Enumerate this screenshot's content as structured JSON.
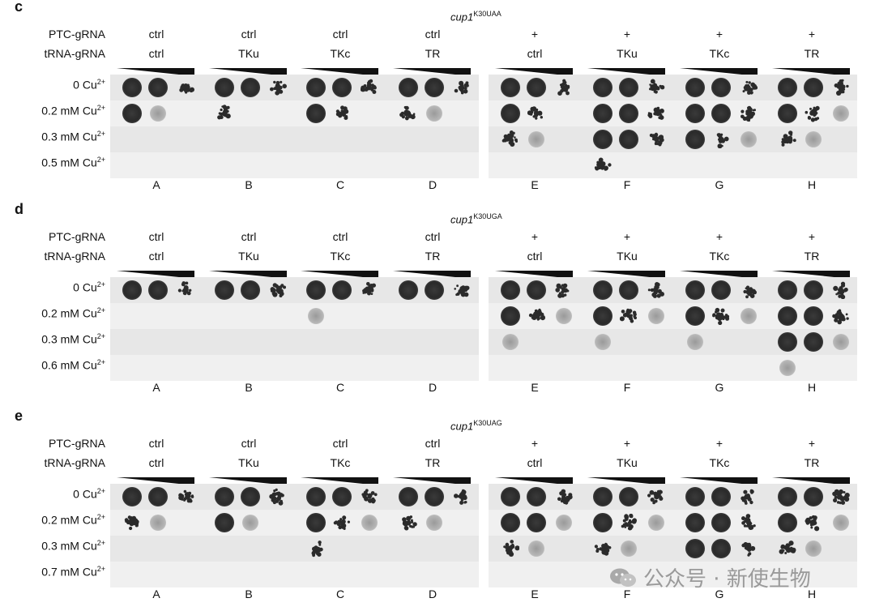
{
  "panels": [
    {
      "letter": "c",
      "strain": "cup1",
      "strain_sup": "K30UAA",
      "row1_label": "PTC-gRNA",
      "row2_label": "tRNA-gRNA",
      "columns": [
        {
          "ptc": "ctrl",
          "trna": "ctrl",
          "letter": "A"
        },
        {
          "ptc": "ctrl",
          "trna": "TKu",
          "letter": "B"
        },
        {
          "ptc": "ctrl",
          "trna": "TKc",
          "letter": "C"
        },
        {
          "ptc": "ctrl",
          "trna": "TR",
          "letter": "D"
        },
        {
          "ptc": "+",
          "trna": "ctrl",
          "letter": "E"
        },
        {
          "ptc": "+",
          "trna": "TKu",
          "letter": "F"
        },
        {
          "ptc": "+",
          "trna": "TKc",
          "letter": "G"
        },
        {
          "ptc": "+",
          "trna": "TR",
          "letter": "H"
        }
      ],
      "conditions": [
        {
          "value": "0 Cu",
          "sup": "2+"
        },
        {
          "value": "0.2 mM Cu",
          "sup": "2+"
        },
        {
          "value": "0.3 mM Cu",
          "sup": "2+"
        },
        {
          "value": "0.5 mM Cu",
          "sup": "2+"
        }
      ],
      "growth": [
        [
          [
            3,
            3,
            2
          ],
          [
            3,
            3,
            2
          ],
          [
            3,
            3,
            2
          ],
          [
            3,
            3,
            2
          ],
          [
            3,
            3,
            2
          ],
          [
            3,
            3,
            2
          ],
          [
            3,
            3,
            2
          ],
          [
            3,
            3,
            2
          ]
        ],
        [
          [
            3,
            1,
            0
          ],
          [
            2,
            0,
            0
          ],
          [
            3,
            2,
            0
          ],
          [
            2,
            1,
            0
          ],
          [
            3,
            2,
            0
          ],
          [
            3,
            3,
            2
          ],
          [
            3,
            3,
            2
          ],
          [
            3,
            2,
            1
          ]
        ],
        [
          [
            0,
            0,
            0
          ],
          [
            0,
            0,
            0
          ],
          [
            0,
            0,
            0
          ],
          [
            0,
            0,
            0
          ],
          [
            2,
            1,
            0
          ],
          [
            3,
            3,
            2
          ],
          [
            3,
            2,
            1
          ],
          [
            2,
            1,
            0
          ]
        ],
        [
          [
            0,
            0,
            0
          ],
          [
            0,
            0,
            0
          ],
          [
            0,
            0,
            0
          ],
          [
            0,
            0,
            0
          ],
          [
            0,
            0,
            0
          ],
          [
            2,
            0,
            0
          ],
          [
            0,
            0,
            0
          ],
          [
            0,
            0,
            0
          ]
        ]
      ]
    },
    {
      "letter": "d",
      "strain": "cup1",
      "strain_sup": "K30UGA",
      "row1_label": "PTC-gRNA",
      "row2_label": "tRNA-gRNA",
      "columns": [
        {
          "ptc": "ctrl",
          "trna": "ctrl",
          "letter": "A"
        },
        {
          "ptc": "ctrl",
          "trna": "TKu",
          "letter": "B"
        },
        {
          "ptc": "ctrl",
          "trna": "TKc",
          "letter": "C"
        },
        {
          "ptc": "ctrl",
          "trna": "TR",
          "letter": "D"
        },
        {
          "ptc": "+",
          "trna": "ctrl",
          "letter": "E"
        },
        {
          "ptc": "+",
          "trna": "TKu",
          "letter": "F"
        },
        {
          "ptc": "+",
          "trna": "TKc",
          "letter": "G"
        },
        {
          "ptc": "+",
          "trna": "TR",
          "letter": "H"
        }
      ],
      "conditions": [
        {
          "value": "0 Cu",
          "sup": "2+"
        },
        {
          "value": "0.2 mM Cu",
          "sup": "2+"
        },
        {
          "value": "0.3 mM Cu",
          "sup": "2+"
        },
        {
          "value": "0.6 mM Cu",
          "sup": "2+"
        }
      ],
      "growth": [
        [
          [
            3,
            3,
            2
          ],
          [
            3,
            3,
            2
          ],
          [
            3,
            3,
            2
          ],
          [
            3,
            3,
            2
          ],
          [
            3,
            3,
            2
          ],
          [
            3,
            3,
            2
          ],
          [
            3,
            3,
            2
          ],
          [
            3,
            3,
            2
          ]
        ],
        [
          [
            0,
            0,
            0
          ],
          [
            0,
            0,
            0
          ],
          [
            1,
            0,
            0
          ],
          [
            0,
            0,
            0
          ],
          [
            3,
            2,
            1
          ],
          [
            3,
            2,
            1
          ],
          [
            3,
            2,
            1
          ],
          [
            3,
            3,
            2
          ]
        ],
        [
          [
            0,
            0,
            0
          ],
          [
            0,
            0,
            0
          ],
          [
            0,
            0,
            0
          ],
          [
            0,
            0,
            0
          ],
          [
            1,
            0,
            0
          ],
          [
            1,
            0,
            0
          ],
          [
            1,
            0,
            0
          ],
          [
            3,
            3,
            1
          ]
        ],
        [
          [
            0,
            0,
            0
          ],
          [
            0,
            0,
            0
          ],
          [
            0,
            0,
            0
          ],
          [
            0,
            0,
            0
          ],
          [
            0,
            0,
            0
          ],
          [
            0,
            0,
            0
          ],
          [
            0,
            0,
            0
          ],
          [
            1,
            0,
            0
          ]
        ]
      ]
    },
    {
      "letter": "e",
      "strain": "cup1",
      "strain_sup": "K30UAG",
      "row1_label": "PTC-gRNA",
      "row2_label": "tRNA-gRNA",
      "columns": [
        {
          "ptc": "ctrl",
          "trna": "ctrl",
          "letter": "A"
        },
        {
          "ptc": "ctrl",
          "trna": "TKu",
          "letter": "B"
        },
        {
          "ptc": "ctrl",
          "trna": "TKc",
          "letter": "C"
        },
        {
          "ptc": "ctrl",
          "trna": "TR",
          "letter": "D"
        },
        {
          "ptc": "+",
          "trna": "ctrl",
          "letter": "E"
        },
        {
          "ptc": "+",
          "trna": "TKu",
          "letter": "F"
        },
        {
          "ptc": "+",
          "trna": "TKc",
          "letter": "G"
        },
        {
          "ptc": "+",
          "trna": "TR",
          "letter": "H"
        }
      ],
      "conditions": [
        {
          "value": "0 Cu",
          "sup": "2+"
        },
        {
          "value": "0.2 mM Cu",
          "sup": "2+"
        },
        {
          "value": "0.3 mM Cu",
          "sup": "2+"
        },
        {
          "value": "0.7 mM Cu",
          "sup": "2+"
        }
      ],
      "growth": [
        [
          [
            3,
            3,
            2
          ],
          [
            3,
            3,
            2
          ],
          [
            3,
            3,
            2
          ],
          [
            3,
            3,
            2
          ],
          [
            3,
            3,
            2
          ],
          [
            3,
            3,
            2
          ],
          [
            3,
            3,
            2
          ],
          [
            3,
            3,
            2
          ]
        ],
        [
          [
            2,
            1,
            0
          ],
          [
            3,
            1,
            0
          ],
          [
            3,
            2,
            1
          ],
          [
            2,
            1,
            0
          ],
          [
            3,
            3,
            1
          ],
          [
            3,
            2,
            1
          ],
          [
            3,
            3,
            2
          ],
          [
            3,
            2,
            1
          ]
        ],
        [
          [
            0,
            0,
            0
          ],
          [
            0,
            0,
            0
          ],
          [
            2,
            0,
            0
          ],
          [
            0,
            0,
            0
          ],
          [
            2,
            1,
            0
          ],
          [
            2,
            1,
            0
          ],
          [
            3,
            3,
            2
          ],
          [
            2,
            1,
            0
          ]
        ],
        [
          [
            0,
            0,
            0
          ],
          [
            0,
            0,
            0
          ],
          [
            0,
            0,
            0
          ],
          [
            0,
            0,
            0
          ],
          [
            0,
            0,
            0
          ],
          [
            0,
            0,
            0
          ],
          [
            0,
            0,
            0
          ],
          [
            0,
            0,
            0
          ]
        ]
      ]
    }
  ],
  "watermark": "公众号 · 新使生物",
  "colors": {
    "plate": "#ededed",
    "colony": "#2a2a2a",
    "gap_bg": "#ffffff"
  }
}
